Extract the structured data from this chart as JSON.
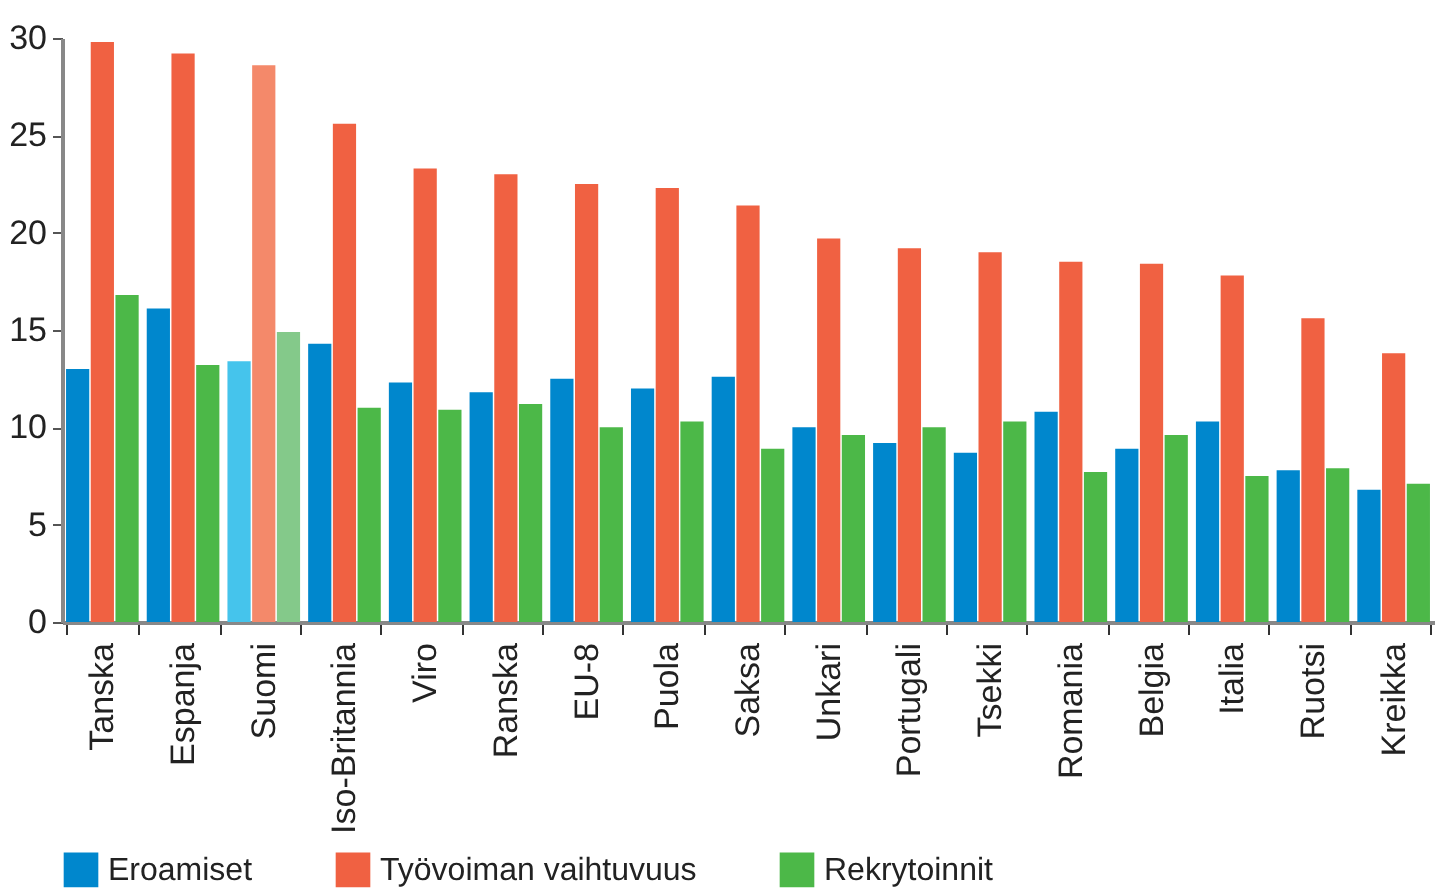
{
  "chart_data": {
    "type": "bar",
    "categories": [
      "Tanska",
      "Espanja",
      "Suomi",
      "Iso-Britannia",
      "Viro",
      "Ranska",
      "EU-8",
      "Puola",
      "Saksa",
      "Unkari",
      "Portugali",
      "Tsekki",
      "Romania",
      "Belgia",
      "Italia",
      "Ruotsi",
      "Kreikka"
    ],
    "series": [
      {
        "name": "Eroamiset",
        "color": "#0087cd",
        "colors": [
          "#0087cd",
          "#0087cd",
          "#45c4ec",
          "#0087cd",
          "#0087cd",
          "#0087cd",
          "#0087cd",
          "#0087cd",
          "#0087cd",
          "#0087cd",
          "#0087cd",
          "#0087cd",
          "#0087cd",
          "#0087cd",
          "#0087cd",
          "#0087cd",
          "#0087cd"
        ],
        "values": [
          13.0,
          16.1,
          13.4,
          14.3,
          12.3,
          11.8,
          12.5,
          12.0,
          12.6,
          10.0,
          9.2,
          8.7,
          10.8,
          8.9,
          10.3,
          7.8,
          6.8
        ]
      },
      {
        "name": "Työvoiman vaihtuvuus",
        "color": "#f06142",
        "colors": [
          "#f06142",
          "#f06142",
          "#f4896a",
          "#f06142",
          "#f06142",
          "#f06142",
          "#f06142",
          "#f06142",
          "#f06142",
          "#f06142",
          "#f06142",
          "#f06142",
          "#f06142",
          "#f06142",
          "#f06142",
          "#f06142",
          "#f06142"
        ],
        "values": [
          29.8,
          29.2,
          28.6,
          25.6,
          23.3,
          23.0,
          22.5,
          22.3,
          21.4,
          19.7,
          19.2,
          19.0,
          18.5,
          18.4,
          17.8,
          15.6,
          13.8
        ]
      },
      {
        "name": "Rekrytoinnit",
        "color": "#4cb848",
        "colors": [
          "#4cb848",
          "#4cb848",
          "#84c98a",
          "#4cb848",
          "#4cb848",
          "#4cb848",
          "#4cb848",
          "#4cb848",
          "#4cb848",
          "#4cb848",
          "#4cb848",
          "#4cb848",
          "#4cb848",
          "#4cb848",
          "#4cb848",
          "#4cb848",
          "#4cb848"
        ],
        "values": [
          16.8,
          13.2,
          14.9,
          11.0,
          10.9,
          11.2,
          10.0,
          10.3,
          8.9,
          9.6,
          10.0,
          10.3,
          7.7,
          9.6,
          7.5,
          7.9,
          7.1
        ]
      }
    ],
    "ylim": [
      0,
      30
    ],
    "yticks": [
      0,
      5,
      10,
      15,
      20,
      25,
      30
    ],
    "grid": false,
    "legend": "bottom"
  }
}
